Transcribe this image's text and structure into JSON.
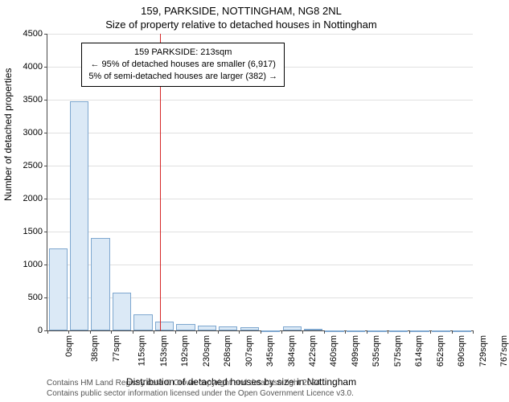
{
  "titles": {
    "main": "159, PARKSIDE, NOTTINGHAM, NG8 2NL",
    "sub": "Size of property relative to detached houses in Nottingham"
  },
  "chart": {
    "type": "histogram",
    "ylabel": "Number of detached properties",
    "xlabel": "Distribution of detached houses by size in Nottingham",
    "ylim": [
      0,
      4500
    ],
    "yticks": [
      0,
      500,
      1000,
      1500,
      2000,
      2500,
      3000,
      3500,
      4000,
      4500
    ],
    "xticks": [
      "0sqm",
      "38sqm",
      "77sqm",
      "115sqm",
      "153sqm",
      "192sqm",
      "230sqm",
      "268sqm",
      "307sqm",
      "345sqm",
      "384sqm",
      "422sqm",
      "460sqm",
      "499sqm",
      "535sqm",
      "575sqm",
      "614sqm",
      "652sqm",
      "690sqm",
      "729sqm",
      "767sqm"
    ],
    "bars": [
      1250,
      3480,
      1400,
      570,
      250,
      140,
      100,
      70,
      60,
      50,
      0,
      60,
      20,
      0,
      0,
      0,
      0,
      0,
      0,
      0
    ],
    "bar_fill": "#dbe9f6",
    "bar_stroke": "#7ea7cf",
    "grid_color": "#e0e0e0",
    "axis_color": "#4a4a4a",
    "ref_line": {
      "position_sqm": 213,
      "x_max_sqm": 805,
      "color": "#d62728"
    },
    "annotation": {
      "line1": "159 PARKSIDE: 213sqm",
      "line2": "← 95% of detached houses are smaller (6,917)",
      "line3": "5% of semi-detached houses are larger (382) →"
    }
  },
  "footer": {
    "line1": "Contains HM Land Registry data © Crown copyright and database right 2024.",
    "line2": "Contains public sector information licensed under the Open Government Licence v3.0."
  }
}
